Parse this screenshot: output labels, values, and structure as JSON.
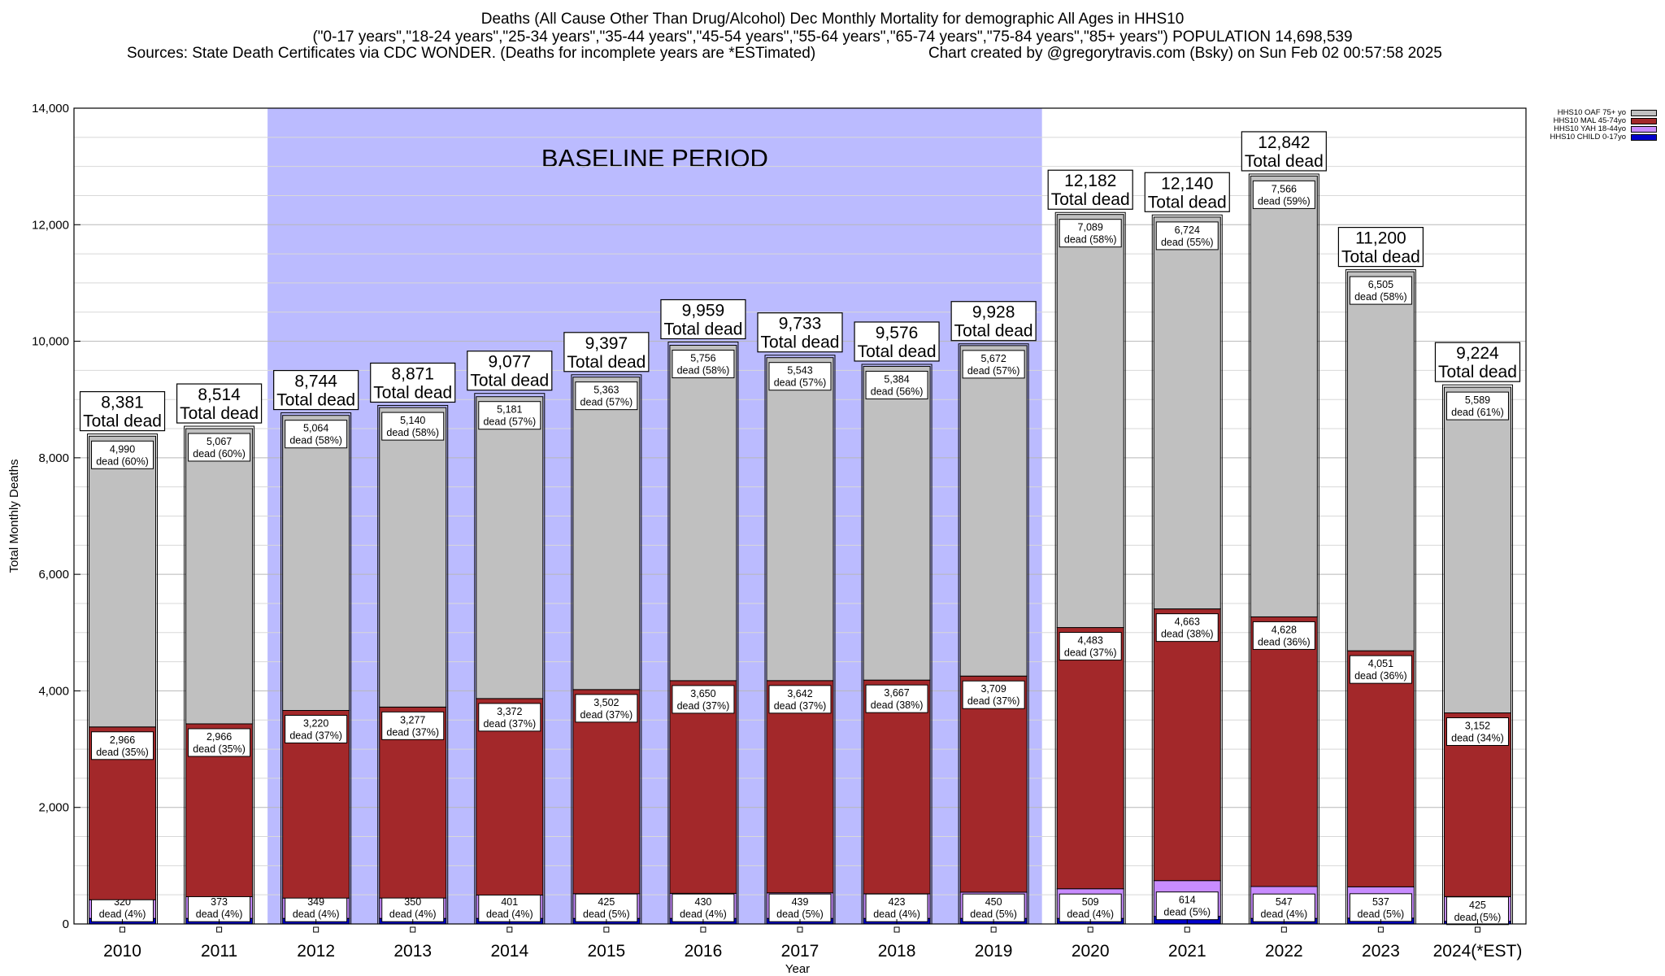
{
  "header": {
    "line1": "Deaths (All Cause Other Than Drug/Alcohol) Dec Monthly Mortality for demographic All Ages in HHS10",
    "line2": "(\"0-17 years\",\"18-24 years\",\"25-34 years\",\"35-44 years\",\"45-54 years\",\"55-64 years\",\"65-74 years\",\"75-84 years\",\"85+ years\") POPULATION 14,698,539",
    "sources": "Sources: State Death Certificates via CDC WONDER. (Deaths for incomplete years are *ESTimated)",
    "credit": "Chart created by @gregorytravis.com (Bsky) on Sun Feb 02 00:57:58 2025"
  },
  "chart_data": {
    "type": "bar",
    "stacked": true,
    "categories": [
      "2010",
      "2011",
      "2012",
      "2013",
      "2014",
      "2015",
      "2016",
      "2017",
      "2018",
      "2019",
      "2020",
      "2021",
      "2022",
      "2023",
      "2024(*EST)"
    ],
    "totals": [
      8381,
      8514,
      8744,
      8871,
      9077,
      9397,
      9959,
      9733,
      9576,
      9928,
      12182,
      12140,
      12842,
      11200,
      9224
    ],
    "total_labels": [
      "8,381",
      "8,514",
      "8,744",
      "8,871",
      "9,077",
      "9,397",
      "9,959",
      "9,733",
      "9,576",
      "9,928",
      "12,182",
      "12,140",
      "12,842",
      "11,200",
      "9,224"
    ],
    "total_suffix": "Total dead",
    "series": [
      {
        "name": "HHS10 CHILD 0-17yo",
        "color": "#0000cc",
        "values": [
          95,
          95,
          95,
          95,
          95,
          95,
          95,
          95,
          95,
          95,
          95,
          130,
          95,
          100,
          45
        ]
      },
      {
        "name": "HHS10 YAH 18-44yo",
        "color": "#c88cff",
        "values": [
          320,
          373,
          349,
          350,
          401,
          425,
          430,
          439,
          423,
          450,
          509,
          614,
          547,
          537,
          425
        ],
        "labels": [
          "320",
          "373",
          "349",
          "350",
          "401",
          "425",
          "430",
          "439",
          "423",
          "450",
          "509",
          "614",
          "547",
          "537",
          "425"
        ],
        "pct": [
          "dead (4%)",
          "dead (4%)",
          "dead (4%)",
          "dead (4%)",
          "dead (4%)",
          "dead (5%)",
          "dead (4%)",
          "dead (5%)",
          "dead (4%)",
          "dead (5%)",
          "dead (4%)",
          "dead (5%)",
          "dead (4%)",
          "dead (5%)",
          "dead (5%)"
        ]
      },
      {
        "name": "HHS10 MAL 45-74yo",
        "color": "#a3282a",
        "values": [
          2966,
          2966,
          3220,
          3277,
          3372,
          3502,
          3650,
          3642,
          3667,
          3709,
          4483,
          4663,
          4628,
          4051,
          3152
        ],
        "labels": [
          "2,966",
          "2,966",
          "3,220",
          "3,277",
          "3,372",
          "3,502",
          "3,650",
          "3,642",
          "3,667",
          "3,709",
          "4,483",
          "4,663",
          "4,628",
          "4,051",
          "3,152"
        ],
        "pct": [
          "dead (35%)",
          "dead (35%)",
          "dead (37%)",
          "dead (37%)",
          "dead (37%)",
          "dead (37%)",
          "dead (37%)",
          "dead (37%)",
          "dead (38%)",
          "dead (37%)",
          "dead (37%)",
          "dead (38%)",
          "dead (36%)",
          "dead (36%)",
          "dead (34%)"
        ]
      },
      {
        "name": "HHS10 OAF 75+ yo",
        "color": "#c0c0c0",
        "values": [
          4990,
          5067,
          5064,
          5140,
          5181,
          5363,
          5756,
          5543,
          5384,
          5672,
          7089,
          6724,
          7566,
          6505,
          5589
        ],
        "labels": [
          "4,990",
          "5,067",
          "5,064",
          "5,140",
          "5,181",
          "5,363",
          "5,756",
          "5,543",
          "5,384",
          "5,672",
          "7,089",
          "6,724",
          "7,566",
          "6,505",
          "5,589"
        ],
        "pct": [
          "dead (60%)",
          "dead (60%)",
          "dead (58%)",
          "dead (58%)",
          "dead (57%)",
          "dead (57%)",
          "dead (58%)",
          "dead (57%)",
          "dead (56%)",
          "dead (57%)",
          "dead (58%)",
          "dead (55%)",
          "dead (59%)",
          "dead (58%)",
          "dead (61%)"
        ]
      }
    ],
    "legend_order": [
      "HHS10 OAF 75+ yo",
      "HHS10 MAL 45-74yo",
      "HHS10 YAH 18-44yo",
      "HHS10 CHILD 0-17yo"
    ],
    "legend_placement": "top-right",
    "xlabel": "Year",
    "ylabel": "Total Monthly Deaths",
    "ylim": [
      0,
      14000
    ],
    "yticks": [
      0,
      2000,
      4000,
      6000,
      8000,
      10000,
      12000,
      14000
    ],
    "ytick_labels": [
      "0",
      "2,000",
      "4,000",
      "6,000",
      "8,000",
      "10,000",
      "12,000",
      "14,000"
    ],
    "grid": true,
    "baseline_period": {
      "label": "BASELINE PERIOD",
      "from": "2012",
      "to": "2019",
      "color": "#bbbbff"
    }
  }
}
